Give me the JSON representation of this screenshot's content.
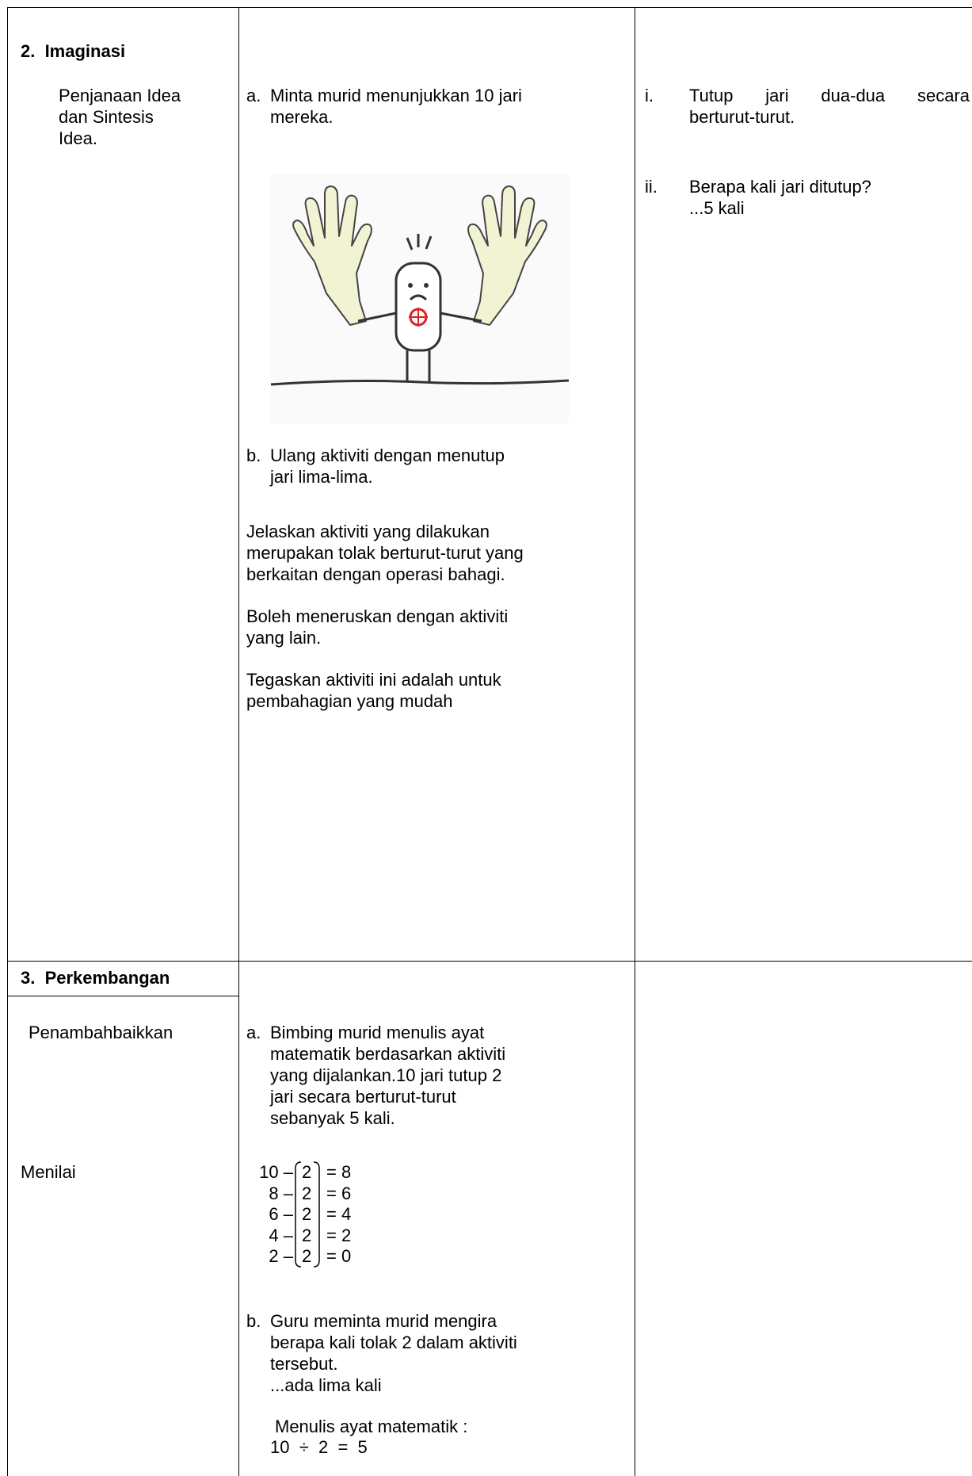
{
  "rows": [
    {
      "stage": "2.  Imaginasi",
      "step": [
        "Penjanaan Idea",
        "dan Sintesis",
        "Idea."
      ],
      "activities": [
        {
          "marker": "a.",
          "lines": [
            "Minta murid menunjukkan 10 jari",
            "mereka."
          ]
        },
        {
          "marker": "b.",
          "lines": [
            "Ulang aktiviti dengan menutup",
            "jari lima-lima."
          ]
        }
      ],
      "paragraphs": [
        [
          "Jelaskan aktiviti yang dilakukan",
          "merupakan tolak berturut-turut yang",
          "berkaitan dengan operasi bahagi."
        ],
        [
          "Boleh meneruskan dengan aktiviti",
          "yang lain."
        ],
        [
          "Tegaskan aktiviti ini adalah untuk",
          "pembahagian yang mudah"
        ]
      ],
      "notes": [
        {
          "marker": "i.",
          "lines": [
            "Tutup jari dua-dua secara",
            "berturut-turut."
          ]
        },
        {
          "marker": "ii.",
          "lines": [
            "Berapa kali jari ditutup?",
            "...5 kali"
          ]
        }
      ]
    },
    {
      "stage": "3.  Perkembangan",
      "step": [
        "Penambahbaikkan"
      ],
      "assess": "Menilai",
      "activities": [
        {
          "marker": "a.",
          "lines": [
            "Bimbing murid menulis ayat",
            "matematik berdasarkan aktiviti",
            "yang dijalankan.10 jari tutup 2",
            "jari secara berturut-turut",
            "sebanyak 5 kali."
          ]
        },
        {
          "marker": "b.",
          "lines": [
            "Guru meminta murid mengira",
            "berapa kali tolak 2 dalam aktiviti",
            "tersebut.",
            "...ada lima kali"
          ]
        }
      ],
      "equations": [
        {
          "left": "10 –",
          "box": "2",
          "right": "= 8"
        },
        {
          "left": "8 –",
          "box": "2",
          "right": "= 6"
        },
        {
          "left": "6 –",
          "box": "2",
          "right": "= 4"
        },
        {
          "left": "4 –",
          "box": "2",
          "right": "= 2"
        },
        {
          "left": "2 –",
          "box": "2",
          "right": "= 0"
        }
      ],
      "math_label": "Menulis ayat matematik :",
      "math_sentence": "10  ÷  2  =  5"
    }
  ]
}
